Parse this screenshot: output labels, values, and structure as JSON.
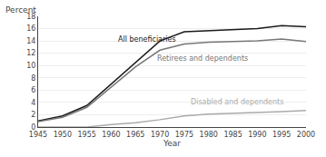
{
  "chart_data": {
    "type": "line",
    "xlabel": "Year",
    "ylabel": "Percent",
    "x": [
      1945,
      1950,
      1955,
      1960,
      1965,
      1970,
      1975,
      1980,
      1985,
      1990,
      1995,
      2000
    ],
    "series": [
      {
        "name": "All beneficiaries",
        "color": "#1a1a1a",
        "values": [
          1.0,
          1.8,
          3.5,
          7.0,
          10.5,
          14.0,
          15.5,
          15.7,
          15.8,
          16.0,
          16.5,
          16.3
        ]
      },
      {
        "name": "Retirees and dependents",
        "color": "#777777",
        "values": [
          0.9,
          1.6,
          3.2,
          6.5,
          9.8,
          12.5,
          13.5,
          13.8,
          13.9,
          14.0,
          14.3,
          13.9
        ]
      },
      {
        "name": "Disabled and dependents",
        "color": "#aaaaaa",
        "values": [
          0.0,
          0.0,
          0.0,
          0.4,
          0.7,
          1.2,
          1.8,
          2.1,
          2.2,
          2.3,
          2.5,
          2.7
        ]
      }
    ],
    "annotations": [
      {
        "text": "All beneficiaries",
        "x": 1961,
        "y": 13.3,
        "color": "#1a1a1a"
      },
      {
        "text": "Retirees and dependents",
        "x": 1969,
        "y": 10.2,
        "color": "#777777"
      },
      {
        "text": "Disabled and dependents",
        "x": 1976,
        "y": 3.1,
        "color": "#aaaaaa"
      }
    ],
    "xlim": [
      1945,
      2000
    ],
    "xticks": [
      1945,
      1950,
      1955,
      1960,
      1965,
      1970,
      1975,
      1980,
      1985,
      1990,
      1995,
      2000
    ],
    "ylim": [
      0,
      18
    ],
    "yticks": [
      0,
      2,
      4,
      6,
      8,
      10,
      12,
      14,
      16,
      18
    ],
    "grid": true
  }
}
